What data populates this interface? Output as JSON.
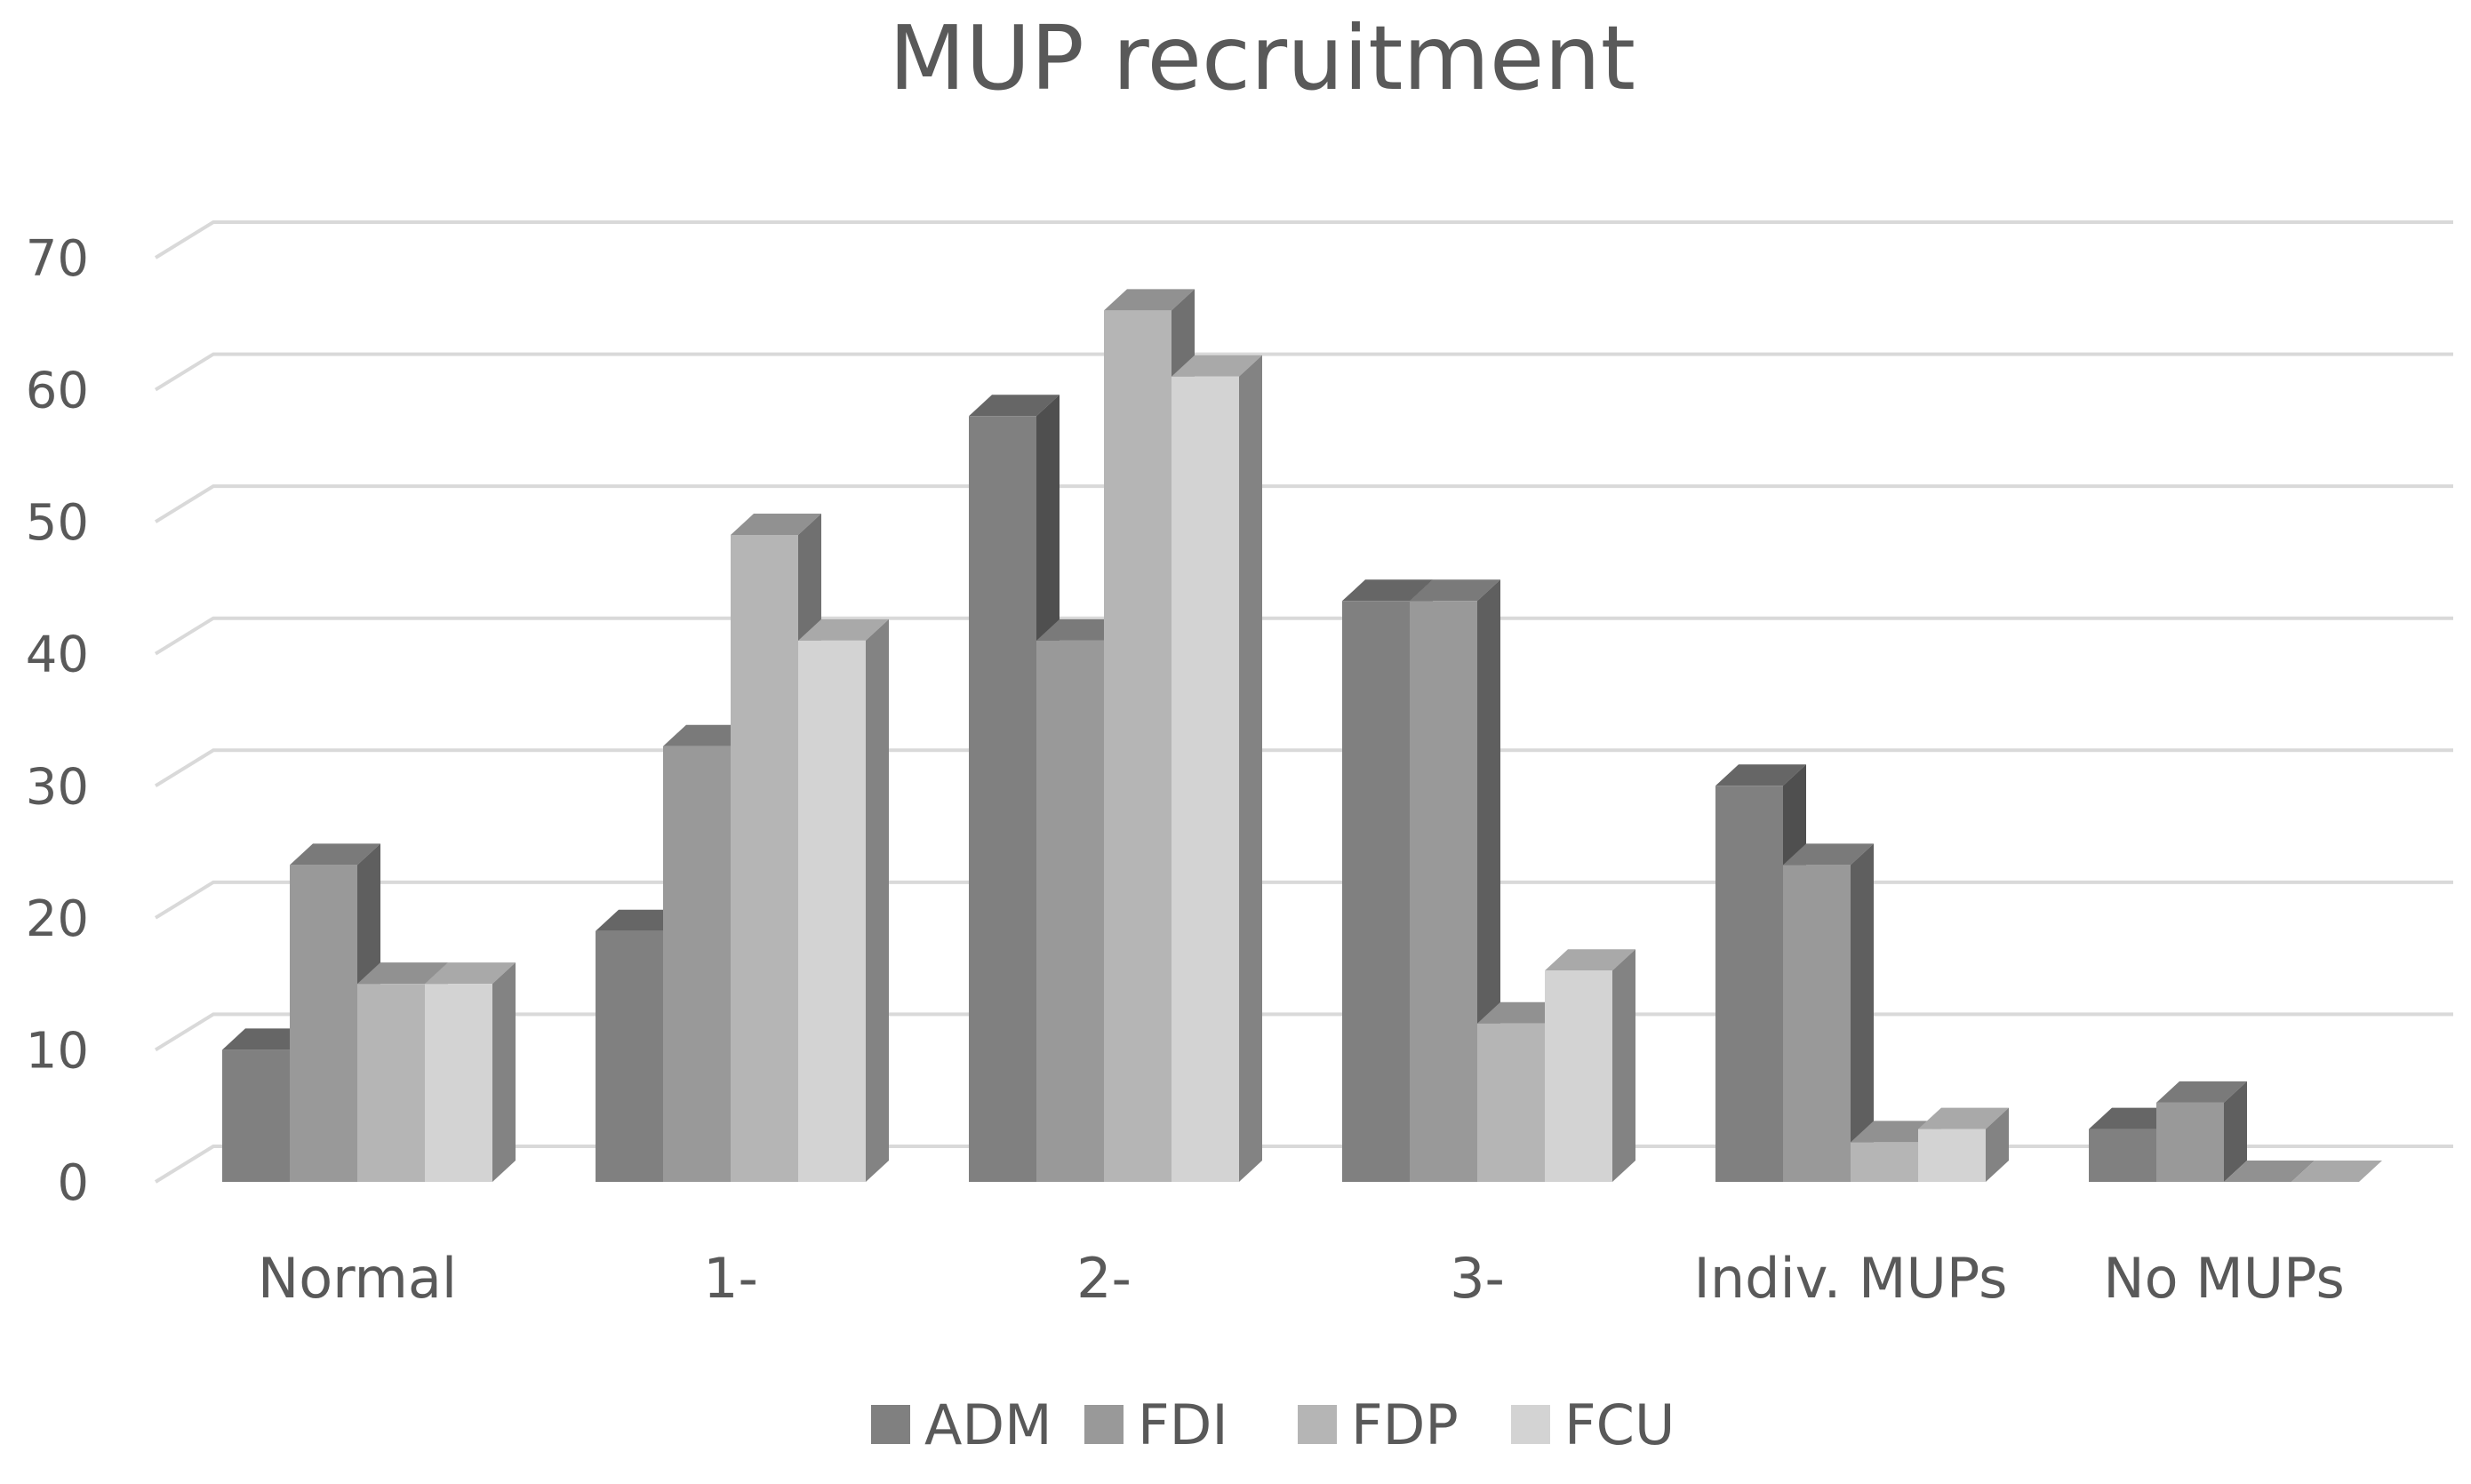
{
  "chart_data": {
    "type": "bar",
    "title": "MUP recruitment",
    "xlabel": "",
    "ylabel": "",
    "ylim": [
      0,
      70
    ],
    "yticks": [
      0,
      10,
      20,
      30,
      40,
      50,
      60,
      70
    ],
    "grid": true,
    "legend_position": "bottom",
    "categories": [
      "Normal",
      "1-",
      "2-",
      "3-",
      "Indiv. MUPs",
      "No MUPs"
    ],
    "series": [
      {
        "name": "ADM",
        "color": "#808080",
        "values": [
          10,
          19,
          58,
          44,
          30,
          4
        ]
      },
      {
        "name": "FDI",
        "color": "#999999",
        "values": [
          24,
          33,
          41,
          44,
          24,
          6
        ]
      },
      {
        "name": "FDP",
        "color": "#b5b5b5",
        "values": [
          15,
          49,
          66,
          12,
          3,
          0
        ]
      },
      {
        "name": "FCU",
        "color": "#d3d3d3",
        "values": [
          15,
          41,
          61,
          16,
          4,
          0
        ]
      }
    ]
  }
}
